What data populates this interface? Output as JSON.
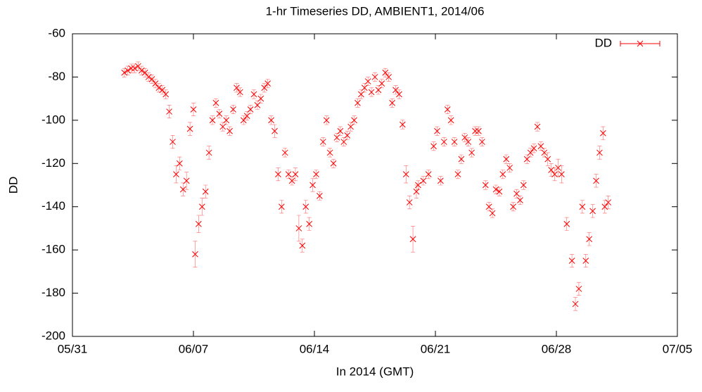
{
  "chart_data": {
    "type": "scatter",
    "title": "1-hr Timeseries DD, AMBIENT1, 2014/06",
    "x_label": "In 2014 (GMT)",
    "y_label": "DD",
    "xlim": [
      0,
      35
    ],
    "xticks": [
      {
        "value": 0,
        "label": "05/31"
      },
      {
        "value": 7,
        "label": "06/07"
      },
      {
        "value": 14,
        "label": "06/14"
      },
      {
        "value": 21,
        "label": "06/21"
      },
      {
        "value": 28,
        "label": "06/28"
      },
      {
        "value": 35,
        "label": "07/05"
      }
    ],
    "ylim": [
      -200,
      -60
    ],
    "yticks": [
      -200,
      -180,
      -160,
      -140,
      -120,
      -100,
      -80,
      -60
    ],
    "legend": "upper right",
    "series": [
      {
        "name": "DD",
        "color": "#ff0000",
        "x": [
          3.0,
          3.2,
          3.4,
          3.6,
          3.8,
          4.0,
          4.2,
          4.4,
          4.6,
          4.8,
          5.0,
          5.2,
          5.4,
          5.6,
          5.8,
          6.0,
          6.2,
          6.4,
          6.6,
          6.8,
          7.0,
          7.1,
          7.3,
          7.5,
          7.7,
          7.9,
          8.1,
          8.3,
          8.5,
          8.7,
          8.9,
          9.1,
          9.3,
          9.5,
          9.7,
          9.9,
          10.1,
          10.3,
          10.5,
          10.7,
          10.9,
          11.1,
          11.3,
          11.5,
          11.7,
          11.9,
          12.1,
          12.3,
          12.5,
          12.7,
          12.9,
          13.1,
          13.3,
          13.5,
          13.7,
          13.9,
          14.1,
          14.3,
          14.5,
          14.7,
          14.9,
          15.1,
          15.3,
          15.5,
          15.7,
          15.9,
          16.1,
          16.3,
          16.5,
          16.7,
          16.9,
          17.1,
          17.3,
          17.5,
          17.7,
          17.9,
          18.1,
          18.3,
          18.5,
          18.7,
          18.9,
          19.1,
          19.3,
          19.5,
          19.7,
          19.9,
          20.0,
          20.3,
          20.6,
          20.9,
          21.1,
          21.3,
          21.5,
          21.7,
          21.9,
          22.1,
          22.3,
          22.5,
          22.7,
          22.9,
          23.1,
          23.3,
          23.5,
          23.7,
          23.9,
          24.1,
          24.3,
          24.5,
          24.7,
          24.9,
          25.1,
          25.3,
          25.5,
          25.7,
          25.9,
          26.1,
          26.3,
          26.5,
          26.7,
          26.9,
          27.1,
          27.3,
          27.5,
          27.7,
          27.9,
          28.1,
          28.3,
          28.6,
          28.9,
          29.1,
          29.3,
          29.5,
          29.7,
          29.9,
          30.1,
          30.3,
          30.5,
          30.7,
          30.8,
          31.0
        ],
        "values": [
          -78,
          -77,
          -76,
          -76,
          -75,
          -77,
          -78,
          -80,
          -81,
          -83,
          -85,
          -86,
          -88,
          -96,
          -110,
          -125,
          -120,
          -132,
          -128,
          -104,
          -95,
          -162,
          -148,
          -140,
          -133,
          -115,
          -100,
          -92,
          -97,
          -103,
          -100,
          -105,
          -95,
          -85,
          -87,
          -100,
          -98,
          -95,
          -88,
          -93,
          -90,
          -85,
          -83,
          -100,
          -105,
          -125,
          -140,
          -115,
          -125,
          -128,
          -125,
          -150,
          -158,
          -140,
          -148,
          -130,
          -125,
          -135,
          -110,
          -100,
          -115,
          -120,
          -108,
          -105,
          -110,
          -107,
          -103,
          -100,
          -92,
          -88,
          -85,
          -82,
          -87,
          -80,
          -86,
          -83,
          -78,
          -80,
          -92,
          -86,
          -88,
          -102,
          -125,
          -138,
          -155,
          -133,
          -130,
          -128,
          -125,
          -112,
          -105,
          -128,
          -110,
          -95,
          -100,
          -110,
          -125,
          -118,
          -108,
          -110,
          -115,
          -105,
          -105,
          -110,
          -130,
          -140,
          -143,
          -132,
          -133,
          -125,
          -118,
          -122,
          -140,
          -134,
          -137,
          -130,
          -118,
          -115,
          -113,
          -103,
          -112,
          -115,
          -118,
          -123,
          -125,
          -122,
          -125,
          -148,
          -165,
          -185,
          -178,
          -140,
          -165,
          -155,
          -142,
          -128,
          -115,
          -106,
          -140,
          -138
        ],
        "errors": [
          2,
          2,
          2,
          2,
          2,
          2,
          2,
          2,
          2,
          2,
          2,
          2,
          2,
          3,
          3,
          4,
          3,
          3,
          4,
          3,
          3,
          6,
          4,
          4,
          3,
          3,
          2,
          2,
          2,
          2,
          2,
          2,
          2,
          2,
          2,
          2,
          2,
          2,
          2,
          2,
          2,
          2,
          2,
          2,
          3,
          3,
          3,
          2,
          2,
          2,
          3,
          6,
          3,
          3,
          3,
          3,
          2,
          2,
          2,
          2,
          2,
          2,
          2,
          2,
          2,
          2,
          2,
          2,
          2,
          2,
          2,
          2,
          2,
          2,
          2,
          2,
          2,
          2,
          2,
          2,
          2,
          2,
          4,
          3,
          6,
          3,
          2,
          2,
          2,
          2,
          2,
          2,
          2,
          2,
          2,
          2,
          2,
          2,
          2,
          2,
          2,
          2,
          2,
          2,
          2,
          2,
          2,
          2,
          2,
          2,
          2,
          2,
          2,
          2,
          2,
          2,
          2,
          2,
          2,
          2,
          2,
          2,
          3,
          3,
          3,
          4,
          4,
          3,
          3,
          3,
          3,
          3,
          3,
          3,
          3,
          3,
          3,
          3,
          3,
          3
        ]
      }
    ]
  }
}
